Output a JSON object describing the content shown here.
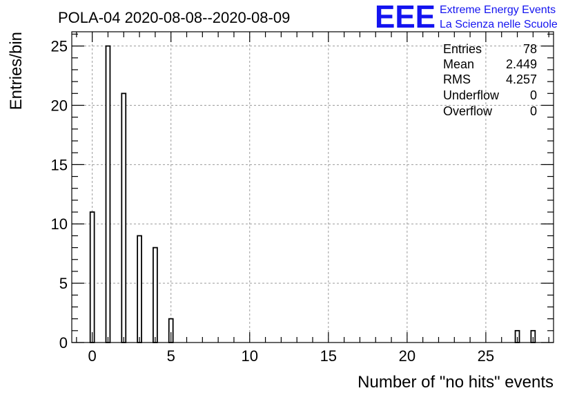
{
  "chart_data": {
    "type": "bar",
    "title": "POLA-04 2020-08-08--2020-08-09",
    "xlabel": "Number of \"no hits\" events",
    "ylabel": "Entries/bin",
    "xlim": [
      -1.3,
      29.3
    ],
    "ylim": [
      0,
      26.2
    ],
    "grid": true,
    "x_ticks": [
      0,
      5,
      10,
      15,
      20,
      25
    ],
    "y_ticks": [
      0,
      5,
      10,
      15,
      20,
      25
    ],
    "bins": [
      {
        "x": 0,
        "value": 11
      },
      {
        "x": 1,
        "value": 25
      },
      {
        "x": 2,
        "value": 21
      },
      {
        "x": 3,
        "value": 9
      },
      {
        "x": 4,
        "value": 8
      },
      {
        "x": 5,
        "value": 2
      },
      {
        "x": 27,
        "value": 1
      },
      {
        "x": 28,
        "value": 1
      }
    ],
    "stats": [
      {
        "label": "Entries",
        "value": "78"
      },
      {
        "label": "Mean",
        "value": "2.449"
      },
      {
        "label": "RMS",
        "value": "4.257"
      },
      {
        "label": "Underflow",
        "value": "0"
      },
      {
        "label": "Overflow",
        "value": "0"
      }
    ]
  },
  "logo": {
    "mark": "EEE",
    "line1": "Extreme Energy Events",
    "line2": "La Scienza nelle Scuole",
    "color": "#1414f0"
  }
}
